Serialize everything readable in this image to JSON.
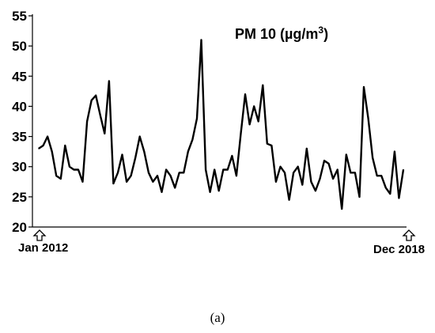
{
  "caption": "(a)",
  "chart_data": {
    "type": "line",
    "title": "PM 10 (µg/m³)",
    "title_parts": {
      "prefix": "PM 10 (µg/m",
      "sup": "3",
      "suffix": ")"
    },
    "xlabel": "",
    "ylabel": "",
    "ylim": [
      20,
      55
    ],
    "yticks": [
      20,
      25,
      30,
      35,
      40,
      45,
      50,
      55
    ],
    "ytick_labels": [
      "20",
      "25",
      "30",
      "35",
      "40",
      "45",
      "50",
      "55"
    ],
    "x_start_label": "Jan 2012",
    "x_end_label": "Dec 2018",
    "grid": false,
    "legend": false,
    "line_color": "#000000",
    "series": [
      {
        "values": [
          33.0,
          33.5,
          35.0,
          32.5,
          28.5,
          28.0,
          33.5,
          30.0,
          29.5,
          29.5,
          27.5,
          37.5,
          41.0,
          41.8,
          38.5,
          35.5,
          44.2,
          27.2,
          29.0,
          32.0,
          27.5,
          28.5,
          31.5,
          35.0,
          32.5,
          29.0,
          27.5,
          28.5,
          25.8,
          29.5,
          28.5,
          26.5,
          29.0,
          29.0,
          32.5,
          34.5,
          38.0,
          51.0,
          29.5,
          25.8,
          29.5,
          26.0,
          29.5,
          29.5,
          31.8,
          28.5,
          35.5,
          42.0,
          37.0,
          40.0,
          37.5,
          43.5,
          33.8,
          33.5,
          27.5,
          30.0,
          29.0,
          24.5,
          29.0,
          30.0,
          27.0,
          33.0,
          27.5,
          26.0,
          28.0,
          31.0,
          30.5,
          28.0,
          29.5,
          23.0,
          32.0,
          29.0,
          29.0,
          25.0,
          43.2,
          38.0,
          31.5,
          28.5,
          28.5,
          26.5,
          25.5,
          32.5,
          24.8,
          29.5
        ]
      }
    ]
  }
}
